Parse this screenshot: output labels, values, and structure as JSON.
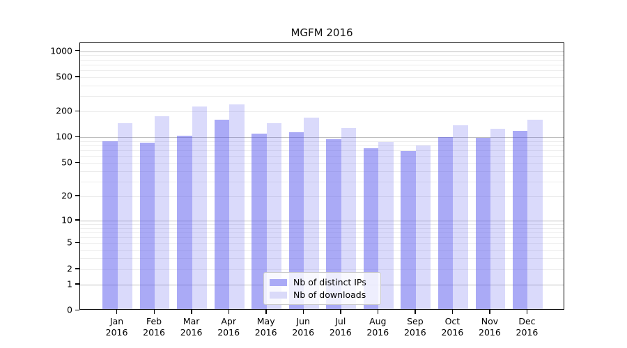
{
  "title": "MGFM 2016",
  "chart_data": {
    "type": "bar",
    "title": "MGFM 2016",
    "categories": [
      "Jan",
      "Feb",
      "Mar",
      "Apr",
      "May",
      "Jun",
      "Jul",
      "Aug",
      "Sep",
      "Oct",
      "Nov",
      "Dec"
    ],
    "category_year": "2016",
    "series": [
      {
        "name": "Nb of distinct IPs",
        "fill": "rgba(85,85,238,0.50)",
        "swatch": "#aaaaf6",
        "values": [
          87,
          83,
          100,
          153,
          107,
          111,
          92,
          72,
          66,
          96,
          95,
          114
        ]
      },
      {
        "name": "Nb of downloads",
        "fill": "rgba(100,100,238,0.24)",
        "swatch": "#dadaf9",
        "values": [
          140,
          170,
          220,
          232,
          140,
          163,
          123,
          85,
          77,
          133,
          120,
          153
        ]
      }
    ],
    "y_ticks": [
      0,
      1,
      2,
      5,
      10,
      20,
      50,
      100,
      200,
      500,
      1000
    ],
    "y_major_gridlines": [
      1,
      10,
      100,
      1000
    ],
    "y_minor_gridlines": [
      2,
      3,
      4,
      5,
      6,
      7,
      8,
      9,
      20,
      30,
      40,
      50,
      60,
      70,
      80,
      90,
      200,
      300,
      400,
      500,
      600,
      700,
      800,
      900
    ],
    "scale": "log1p",
    "ylim": [
      0,
      1240
    ],
    "grid": true,
    "legend_position": "lower center",
    "colors": {
      "major_grid": "#bdbdbd",
      "minor_grid": "#ececec",
      "axis": "#000000",
      "legend_border": "#cccccc",
      "bar_dark": "#aaaaf6",
      "bar_light": "#dadaf9"
    }
  }
}
